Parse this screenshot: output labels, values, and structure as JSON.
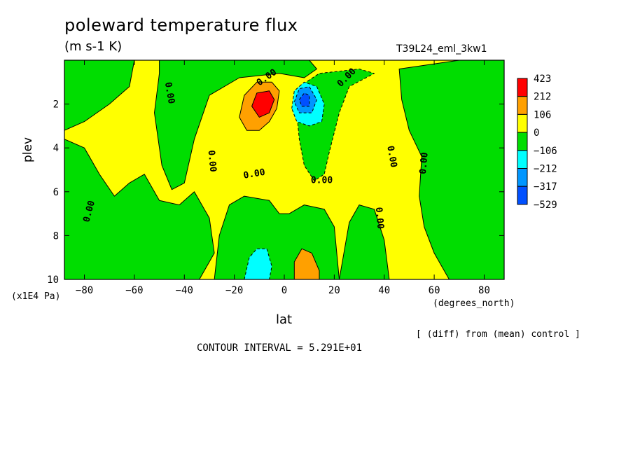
{
  "chart_data": {
    "type": "heatmap",
    "title": "poleward temperature flux",
    "units": "(m s-1 K)",
    "run_name": "T39L24_eml_3kw1",
    "xlabel": "lat",
    "x_unit_label": "(degrees_north)",
    "ylabel": "plev",
    "y_unit_label": "(x1E4 Pa)",
    "xlim": [
      -88,
      88
    ],
    "ylim": [
      0,
      10
    ],
    "y_inverted": true,
    "x_ticks": [
      -80,
      -60,
      -40,
      -20,
      0,
      20,
      40,
      60,
      80
    ],
    "x_tick_labels": [
      "−80",
      "−60",
      "−40",
      "−20",
      "0",
      "20",
      "40",
      "60",
      "80"
    ],
    "y_ticks": [
      2,
      4,
      6,
      8,
      10
    ],
    "y_tick_labels": [
      "2",
      "4",
      "6",
      "8",
      "10"
    ],
    "legend": {
      "placement": "right",
      "labels": [
        "423",
        "212",
        "106",
        "0",
        "−106",
        "−212",
        "−317",
        "−529"
      ],
      "colors": [
        "#ff0000",
        "#ffa000",
        "#ffff00",
        "#00dd00",
        "#00ffff",
        "#0096ff",
        "#0050ff"
      ]
    },
    "contour_labels": [
      {
        "text": "0.00",
        "lat": -46,
        "plev": 1.5,
        "angle": 80
      },
      {
        "text": "0.00",
        "lat": -7,
        "plev": 0.8,
        "angle": -35
      },
      {
        "text": "0.00",
        "lat": 25,
        "plev": 0.8,
        "angle": -45
      },
      {
        "text": "0.00",
        "lat": -29,
        "plev": 4.6,
        "angle": 85
      },
      {
        "text": "0.00",
        "lat": -12,
        "plev": 5.2,
        "angle": -10
      },
      {
        "text": "0.00",
        "lat": 15,
        "plev": 5.5,
        "angle": 0
      },
      {
        "text": "0.00",
        "lat": 43,
        "plev": 4.4,
        "angle": 80
      },
      {
        "text": "0.00",
        "lat": 56,
        "plev": 4.7,
        "angle": -85
      },
      {
        "text": "0.00",
        "lat": -78,
        "plev": 6.9,
        "angle": -75
      },
      {
        "text": "0.00",
        "lat": 38,
        "plev": 7.2,
        "angle": 85
      }
    ],
    "features": [
      {
        "sign": "positive",
        "peak_level": "423",
        "lat_center": -9,
        "plev_center": 2.1
      },
      {
        "sign": "negative",
        "peak_level": "−529",
        "lat_center": 8,
        "plev_center": 2.0
      },
      {
        "sign": "negative",
        "peak_level": "−212",
        "lat_center": -9,
        "plev_center": 9.5
      },
      {
        "sign": "positive",
        "peak_level": "106",
        "lat_center": 9,
        "plev_center": 9.5
      }
    ],
    "grid": false
  },
  "footnotes": {
    "diff": "[ (diff) from (mean) control ]",
    "contour_interval": "CONTOUR INTERVAL = 5.291E+01"
  }
}
